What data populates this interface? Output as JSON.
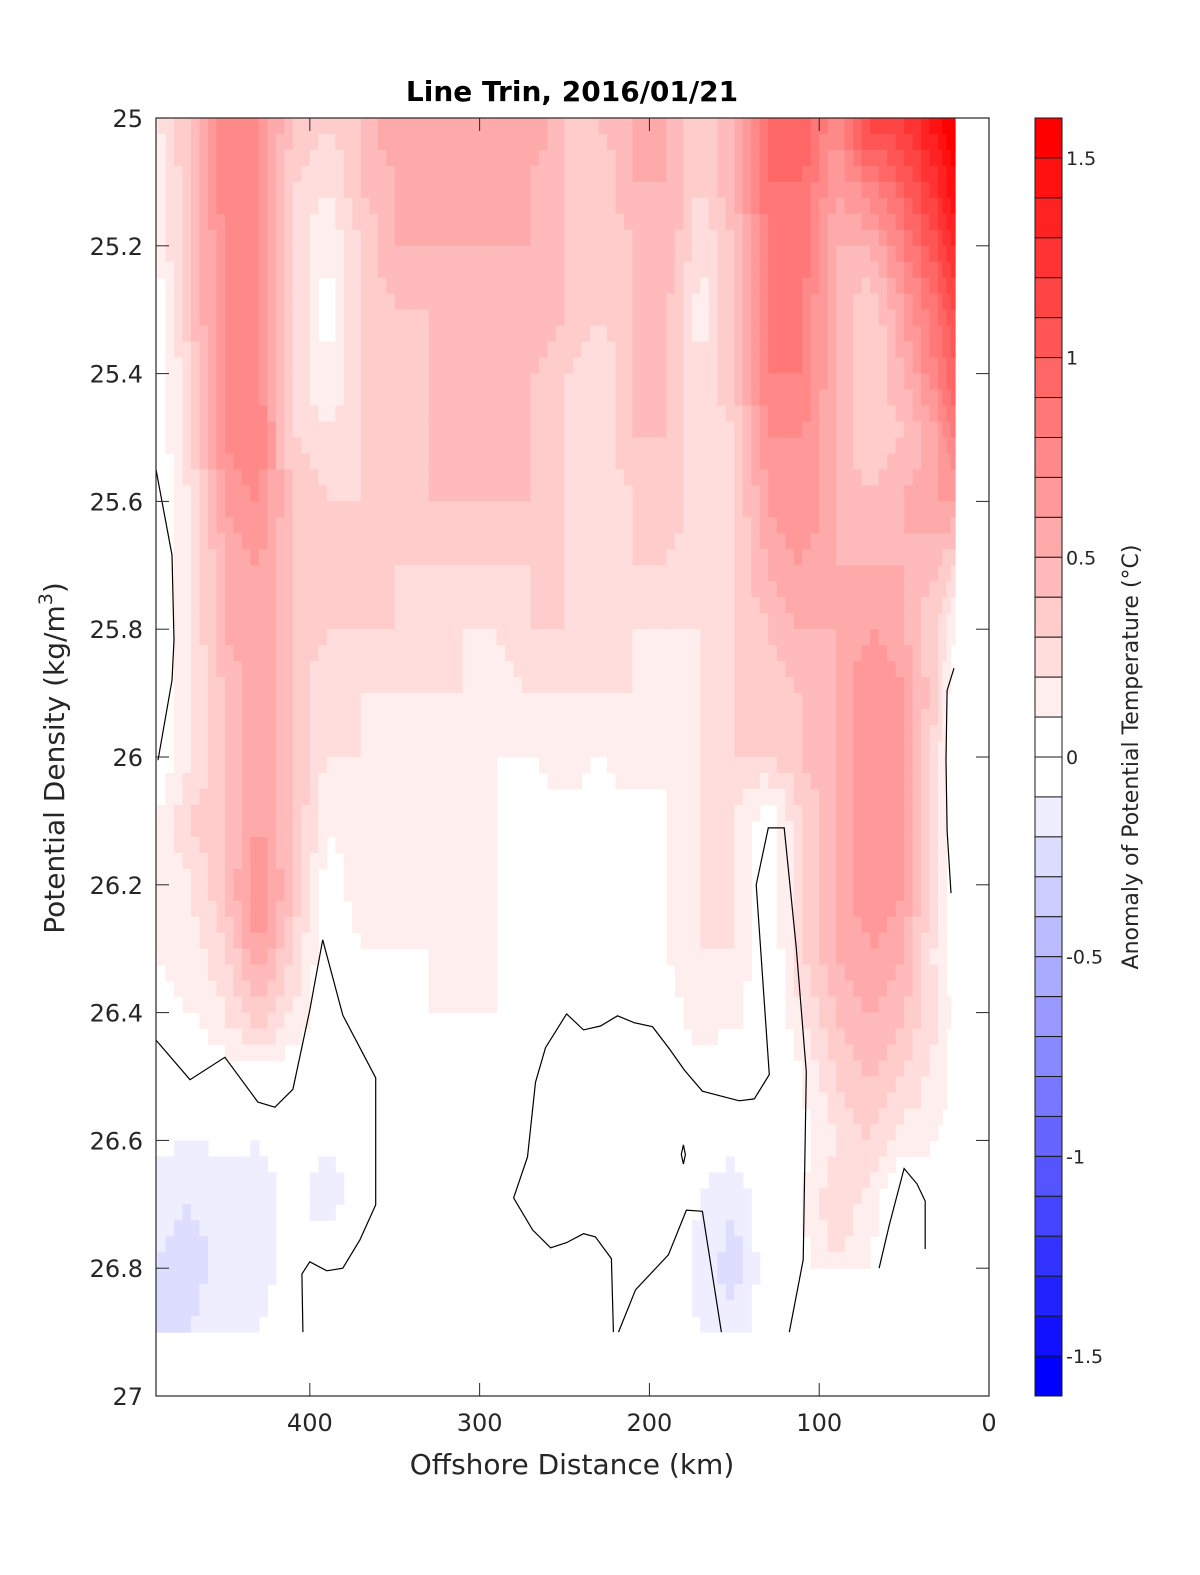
{
  "chart_data": {
    "type": "heatmap",
    "subtype": "filled-contour",
    "title": "Line Trin, 2016/01/21",
    "xlabel": "Offshore Distance (km)",
    "ylabel_main": "Potential Density (kg/m",
    "ylabel_sup": "3",
    "ylabel_close": ")",
    "colorbar_label": "Anomaly of Potential Temperature (°C)",
    "xlim": [
      490.6,
      0
    ],
    "x_reversed": true,
    "ylim": [
      25,
      27
    ],
    "y_reversed": true,
    "x_ticks": [
      400,
      300,
      200,
      100,
      0
    ],
    "x_tick_labels": [
      "400",
      "300",
      "200",
      "100",
      "0"
    ],
    "y_ticks": [
      25,
      25.2,
      25.4,
      25.6,
      25.8,
      26,
      26.2,
      26.4,
      26.6,
      26.8,
      27
    ],
    "y_tick_labels": [
      "25",
      "25.2",
      "25.4",
      "25.6",
      "25.8",
      "26",
      "26.2",
      "26.4",
      "26.6",
      "26.8",
      "27"
    ],
    "colorbar": {
      "range": [
        -1.6,
        1.6
      ],
      "level_step": 0.1,
      "ticks": [
        1.5,
        1,
        0.5,
        0,
        -0.5,
        -1,
        -1.5
      ],
      "tick_labels": [
        "1.5",
        "1",
        "0.5",
        "0",
        "-0.5",
        "-1",
        "-1.5"
      ],
      "warm_color": "#FF0000",
      "cold_color": "#0000FF",
      "neutral_color": "#FFFFFF"
    },
    "grid": false,
    "x": [
      490,
      470,
      450,
      430,
      410,
      390,
      370,
      350,
      330,
      310,
      290,
      270,
      250,
      230,
      210,
      190,
      170,
      150,
      130,
      110,
      90,
      70,
      50,
      30,
      20
    ],
    "y": [
      25.0,
      25.1,
      25.2,
      25.3,
      25.4,
      25.5,
      25.6,
      25.7,
      25.8,
      25.9,
      26.0,
      26.1,
      26.2,
      26.3,
      26.4,
      26.5,
      26.6,
      26.7,
      26.8,
      26.9
    ],
    "z": [
      [
        0.2,
        0.4,
        0.8,
        0.7,
        0.4,
        0.3,
        0.4,
        0.6,
        0.5,
        0.5,
        0.5,
        0.6,
        0.4,
        0.4,
        0.5,
        0.5,
        0.3,
        0.5,
        0.9,
        1.0,
        0.7,
        1.2,
        1.2,
        1.5,
        1.6
      ],
      [
        0.1,
        0.4,
        0.8,
        0.7,
        0.3,
        0.2,
        0.4,
        0.5,
        0.5,
        0.5,
        0.5,
        0.5,
        0.4,
        0.3,
        0.5,
        0.5,
        0.3,
        0.5,
        0.9,
        0.9,
        0.6,
        0.8,
        1.0,
        1.3,
        1.5
      ],
      [
        0.1,
        0.4,
        0.7,
        0.7,
        0.3,
        0.1,
        0.3,
        0.5,
        0.5,
        0.5,
        0.5,
        0.5,
        0.4,
        0.3,
        0.4,
        0.5,
        0.2,
        0.4,
        0.8,
        0.9,
        0.5,
        0.5,
        0.8,
        1.1,
        1.3
      ],
      [
        0.0,
        0.4,
        0.7,
        0.7,
        0.3,
        0.05,
        0.3,
        0.4,
        0.4,
        0.5,
        0.4,
        0.5,
        0.4,
        0.3,
        0.4,
        0.4,
        0.15,
        0.4,
        0.8,
        0.8,
        0.5,
        0.3,
        0.6,
        0.9,
        1.1
      ],
      [
        0.0,
        0.3,
        0.7,
        0.7,
        0.3,
        0.1,
        0.3,
        0.3,
        0.4,
        0.4,
        0.4,
        0.4,
        0.3,
        0.2,
        0.4,
        0.4,
        0.2,
        0.4,
        0.8,
        0.8,
        0.5,
        0.3,
        0.5,
        0.8,
        1.0
      ],
      [
        0.0,
        0.3,
        0.7,
        0.8,
        0.3,
        0.2,
        0.3,
        0.3,
        0.4,
        0.4,
        0.4,
        0.4,
        0.3,
        0.2,
        0.4,
        0.4,
        0.2,
        0.3,
        0.7,
        0.7,
        0.5,
        0.3,
        0.4,
        0.6,
        0.8
      ],
      [
        -0.02,
        0.2,
        0.6,
        0.7,
        0.4,
        0.3,
        0.3,
        0.4,
        0.4,
        0.4,
        0.4,
        0.4,
        0.3,
        0.2,
        0.3,
        0.4,
        0.2,
        0.3,
        0.6,
        0.7,
        0.5,
        0.4,
        0.5,
        0.6,
        0.6
      ],
      [
        -0.05,
        0.2,
        0.5,
        0.6,
        0.4,
        0.3,
        0.3,
        0.3,
        0.3,
        0.3,
        0.3,
        0.3,
        0.3,
        0.2,
        0.3,
        0.3,
        0.2,
        0.3,
        0.5,
        0.6,
        0.5,
        0.5,
        0.5,
        0.4,
        0.3
      ],
      [
        -0.05,
        0.2,
        0.5,
        0.6,
        0.4,
        0.3,
        0.3,
        0.3,
        0.2,
        0.2,
        0.2,
        0.3,
        0.3,
        0.2,
        0.2,
        0.2,
        0.2,
        0.3,
        0.4,
        0.5,
        0.5,
        0.6,
        0.5,
        0.3,
        0.1
      ],
      [
        -0.03,
        0.2,
        0.4,
        0.6,
        0.4,
        0.2,
        0.2,
        0.2,
        0.2,
        0.2,
        0.1,
        0.2,
        0.2,
        0.2,
        0.2,
        0.15,
        0.2,
        0.3,
        0.3,
        0.4,
        0.5,
        0.7,
        0.6,
        0.3,
        -0.02
      ],
      [
        0.0,
        0.2,
        0.4,
        0.6,
        0.4,
        0.2,
        0.2,
        0.15,
        0.15,
        0.15,
        0.1,
        0.1,
        0.15,
        0.1,
        0.15,
        0.1,
        0.2,
        0.3,
        0.3,
        0.4,
        0.5,
        0.7,
        0.6,
        0.2,
        -0.03
      ],
      [
        0.1,
        0.3,
        0.4,
        0.6,
        0.4,
        0.1,
        0.15,
        0.15,
        0.2,
        0.15,
        0.1,
        0.05,
        0.05,
        0.05,
        0.05,
        0.1,
        0.2,
        0.2,
        0.0,
        0.3,
        0.5,
        0.7,
        0.6,
        0.2,
        -0.03
      ],
      [
        0.1,
        0.2,
        0.4,
        0.7,
        0.4,
        0.05,
        0.15,
        0.15,
        0.15,
        0.1,
        0.1,
        0.05,
        0.0,
        0.0,
        0.0,
        0.1,
        0.2,
        0.2,
        -0.02,
        0.3,
        0.5,
        0.7,
        0.6,
        0.2,
        -0.02
      ],
      [
        0.1,
        0.15,
        0.3,
        0.6,
        0.3,
        0.0,
        0.1,
        0.1,
        0.1,
        0.1,
        0.1,
        0.05,
        0.0,
        0.0,
        0.0,
        0.1,
        0.2,
        0.2,
        -0.02,
        0.3,
        0.5,
        0.6,
        0.5,
        0.15,
        0.05
      ],
      [
        0.05,
        0.1,
        0.2,
        0.4,
        0.2,
        -0.02,
        0.05,
        0.05,
        0.1,
        0.1,
        0.1,
        0.05,
        0.02,
        0.02,
        0.02,
        0.05,
        0.15,
        0.15,
        -0.02,
        0.2,
        0.4,
        0.5,
        0.4,
        0.2,
        0.05
      ],
      [
        -0.03,
        0.0,
        0.05,
        0.0,
        0.02,
        -0.05,
        -0.03,
        0.02,
        0.02,
        0.02,
        0.02,
        -0.02,
        -0.03,
        -0.02,
        -0.01,
        0.0,
        0.05,
        -0.02,
        -0.02,
        0.1,
        0.3,
        0.4,
        0.3,
        0.15,
        0.05
      ],
      [
        -0.08,
        -0.1,
        -0.08,
        -0.1,
        -0.05,
        -0.1,
        -0.05,
        0.01,
        0.02,
        0.01,
        0.01,
        -0.03,
        -0.1,
        -0.02,
        -0.03,
        -0.02,
        -0.05,
        -0.05,
        -0.03,
        0.05,
        0.2,
        0.3,
        0.15,
        0.1,
        0.05
      ],
      [
        -0.15,
        -0.2,
        -0.15,
        -0.15,
        -0.05,
        -0.15,
        -0.05,
        0.01,
        0.05,
        0.02,
        0.01,
        -0.02,
        -0.02,
        -0.05,
        -0.1,
        -0.03,
        -0.1,
        -0.2,
        -0.02,
        0.1,
        0.3,
        0.15,
        -0.05,
        0.0,
        0.0
      ],
      [
        -0.2,
        -0.25,
        -0.15,
        -0.15,
        -0.05,
        -0.02,
        0.02,
        0.1,
        0.1,
        0.05,
        0.02,
        0.0,
        -0.02,
        -0.02,
        -0.02,
        0.0,
        -0.15,
        -0.25,
        -0.02,
        0.05,
        0.2,
        0.1,
        -0.08,
        0.0,
        0.0
      ],
      [
        -0.2,
        -0.2,
        -0.1,
        -0.1,
        -0.02,
        0.0,
        0.05,
        0.05,
        0.1,
        0.05,
        0.02,
        0.0,
        -0.02,
        -0.02,
        0.0,
        0.05,
        -0.1,
        -0.15,
        -0.02,
        0.05,
        null,
        null,
        null,
        null,
        null
      ]
    ],
    "zero_contours": [
      [
        [
          490.6,
          25.55
        ],
        [
          481.2,
          25.684
        ],
        [
          480.0,
          25.817
        ],
        [
          481.2,
          25.88
        ],
        [
          489.4,
          26.005
        ]
      ],
      [
        [
          490.6,
          26.443
        ],
        [
          470.6,
          26.505
        ],
        [
          450.0,
          26.47
        ],
        [
          430.6,
          26.54
        ],
        [
          420.6,
          26.548
        ],
        [
          410.0,
          26.52
        ],
        [
          400.0,
          26.396
        ],
        [
          392.4,
          26.286
        ],
        [
          380.6,
          26.404
        ],
        [
          361.2,
          26.502
        ],
        [
          361.2,
          26.701
        ],
        [
          370.6,
          26.756
        ],
        [
          380.6,
          26.8
        ],
        [
          390.0,
          26.804
        ],
        [
          400.0,
          26.79
        ],
        [
          404.7,
          26.809
        ],
        [
          404.1,
          26.9
        ]
      ],
      [
        [
          221.2,
          26.9
        ],
        [
          222.4,
          26.785
        ],
        [
          231.8,
          26.751
        ],
        [
          238.8,
          26.746
        ],
        [
          248.8,
          26.76
        ],
        [
          258.2,
          26.768
        ],
        [
          268.8,
          26.74
        ],
        [
          280.0,
          26.69
        ],
        [
          271.8,
          26.626
        ],
        [
          267.1,
          26.509
        ],
        [
          261.2,
          26.455
        ],
        [
          248.8,
          26.402
        ],
        [
          238.8,
          26.427
        ],
        [
          228.8,
          26.421
        ],
        [
          218.8,
          26.405
        ],
        [
          208.8,
          26.416
        ],
        [
          198.2,
          26.422
        ],
        [
          188.2,
          26.457
        ],
        [
          179.4,
          26.49
        ],
        [
          168.8,
          26.523
        ],
        [
          147.1,
          26.538
        ],
        [
          138.2,
          26.535
        ],
        [
          129.4,
          26.497
        ],
        [
          137.1,
          26.2
        ],
        [
          130.0,
          26.111
        ],
        [
          120.6,
          26.111
        ],
        [
          113.5,
          26.299
        ],
        [
          107.6,
          26.493
        ],
        [
          109.4,
          26.787
        ],
        [
          117.6,
          26.9
        ]
      ],
      [
        [
          218.2,
          26.9
        ],
        [
          208.2,
          26.834
        ],
        [
          188.8,
          26.779
        ],
        [
          178.2,
          26.709
        ],
        [
          168.8,
          26.711
        ],
        [
          157.6,
          26.9
        ]
      ],
      [
        [
          180.0,
          26.607
        ],
        [
          181.2,
          26.622
        ],
        [
          180.0,
          26.637
        ],
        [
          178.8,
          26.622
        ],
        [
          180.0,
          26.607
        ]
      ],
      [
        [
          20.6,
          25.861
        ],
        [
          24.7,
          25.896
        ],
        [
          25.3,
          26.005
        ],
        [
          24.7,
          26.115
        ],
        [
          22.4,
          26.213
        ]
      ],
      [
        [
          64.7,
          26.8
        ],
        [
          58.8,
          26.733
        ],
        [
          50.0,
          26.644
        ],
        [
          42.4,
          26.668
        ],
        [
          37.6,
          26.695
        ],
        [
          37.6,
          26.77
        ]
      ]
    ]
  }
}
